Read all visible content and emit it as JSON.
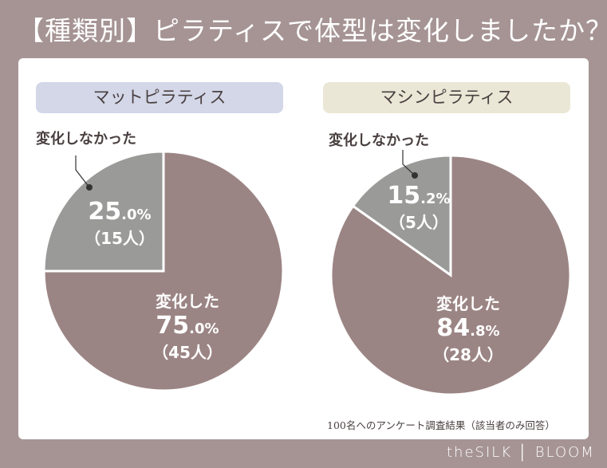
{
  "title": "【種類別】ピラティスで体型は変化しましたか？",
  "footnote": "100名へのアンケート調査結果（該当者のみ回答）",
  "brand": "theSILK │ BLOOM",
  "colors": {
    "background": "#a69494",
    "changed": "#9b8584",
    "not_changed": "#9a9b99",
    "mat_pill": "#d3d7e8",
    "machine_pill": "#eae7d6"
  },
  "chart_data": [
    {
      "type": "pie",
      "title": "マットピラティス",
      "slices": [
        {
          "label": "変化した",
          "value": 75.0,
          "pct_main": "75",
          "pct_dec": ".0%",
          "count": "（45人）"
        },
        {
          "label": "変化しなかった",
          "value": 25.0,
          "pct_main": "25",
          "pct_dec": ".0%",
          "count": "（15人）"
        }
      ]
    },
    {
      "type": "pie",
      "title": "マシンピラティス",
      "slices": [
        {
          "label": "変化した",
          "value": 84.8,
          "pct_main": "84",
          "pct_dec": ".8%",
          "count": "（28人）"
        },
        {
          "label": "変化しなかった",
          "value": 15.2,
          "pct_main": "15",
          "pct_dec": ".2%",
          "count": "（5人）"
        }
      ]
    }
  ]
}
